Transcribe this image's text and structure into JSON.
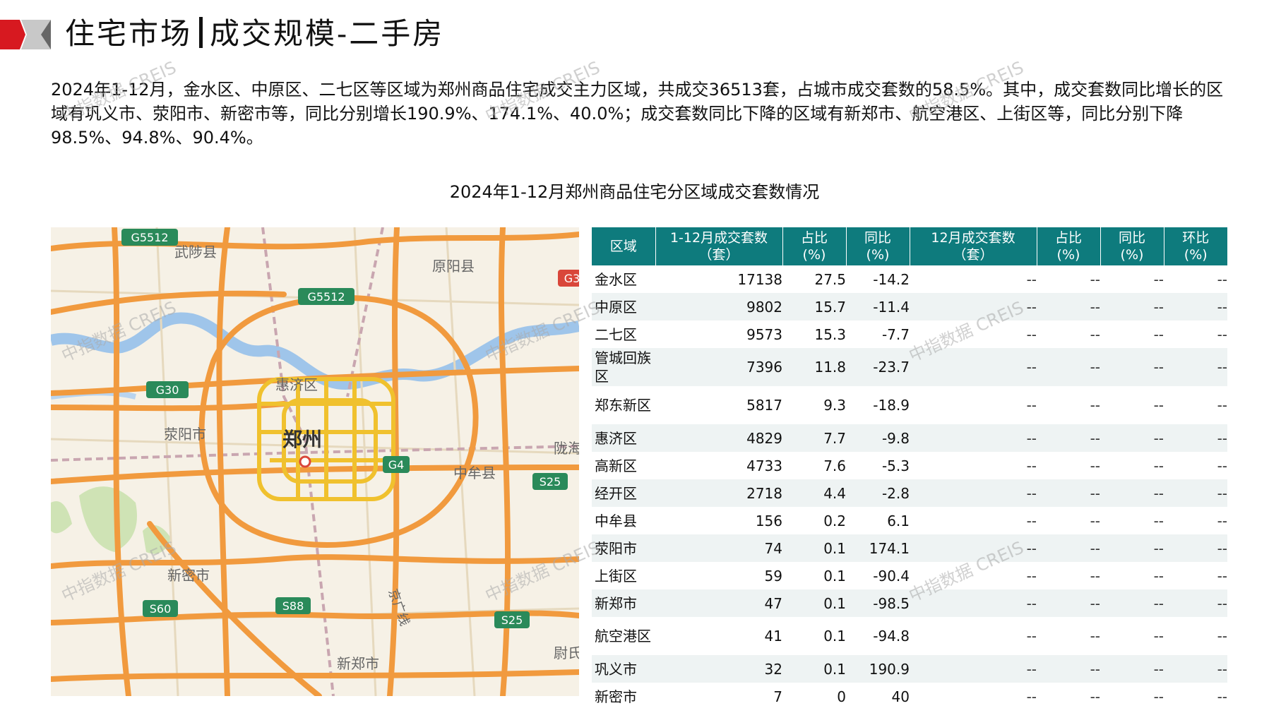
{
  "header": {
    "title_left": "住宅市场",
    "title_right": "成交规模-二手房"
  },
  "summary": "2024年1-12月，金水区、中原区、二七区等区域为郑州商品住宅成交主力区域，共成交36513套，占城市成交套数的58.5%。其中，成交套数同比增长的区域有巩义市、荥阳市、新密市等，同比分别增长190.9%、174.1%、40.0%；成交套数同比下降的区域有新郑市、航空港区、上街区等，同比分别下降98.5%、94.8%、90.4%。",
  "table_title": "2024年1-12月郑州商品住宅分区域成交套数情况",
  "watermark": "中指数据 CREIS",
  "map": {
    "labels": {
      "wuzhi": "武陟县",
      "yuanyang": "原阳县",
      "huiji": "惠济区",
      "zhengzhou": "郑州",
      "xingyang": "荥阳市",
      "zhongmou": "中牟县",
      "xinmi": "新密市",
      "xinzheng": "新郑市",
      "jingguang": "京广线",
      "weishi": "尉氏",
      "longhai": "陇海"
    },
    "shields": {
      "g5512a": "G5512",
      "g5512b": "G5512",
      "g30": "G30",
      "g4": "G4",
      "s25a": "S25",
      "s25b": "S25",
      "s60": "S60",
      "s88": "S88",
      "g3": "G3"
    }
  },
  "table": {
    "headers": [
      [
        "区域",
        ""
      ],
      [
        "1-12月成交套数",
        "（套）"
      ],
      [
        "占比",
        "(%)"
      ],
      [
        "同比",
        "(%)"
      ],
      [
        "12月成交套数",
        "（套）"
      ],
      [
        "占比",
        "(%)"
      ],
      [
        "同比",
        "(%)"
      ],
      [
        "环比",
        "(%)"
      ]
    ],
    "rows": [
      {
        "region": "金水区",
        "count": "17138",
        "share": "27.5",
        "yoy": "-14.2",
        "dec_count": "--",
        "dec_share": "--",
        "dec_yoy": "--",
        "dec_mom": "--"
      },
      {
        "region": "中原区",
        "count": "9802",
        "share": "15.7",
        "yoy": "-11.4",
        "dec_count": "--",
        "dec_share": "--",
        "dec_yoy": "--",
        "dec_mom": "--"
      },
      {
        "region": "二七区",
        "count": "9573",
        "share": "15.3",
        "yoy": "-7.7",
        "dec_count": "--",
        "dec_share": "--",
        "dec_yoy": "--",
        "dec_mom": "--"
      },
      {
        "region": "管城回族区",
        "count": "7396",
        "share": "11.8",
        "yoy": "-23.7",
        "dec_count": "--",
        "dec_share": "--",
        "dec_yoy": "--",
        "dec_mom": "--"
      },
      {
        "region": "郑东新区",
        "count": "5817",
        "share": "9.3",
        "yoy": "-18.9",
        "dec_count": "--",
        "dec_share": "--",
        "dec_yoy": "--",
        "dec_mom": "--"
      },
      {
        "region": "惠济区",
        "count": "4829",
        "share": "7.7",
        "yoy": "-9.8",
        "dec_count": "--",
        "dec_share": "--",
        "dec_yoy": "--",
        "dec_mom": "--"
      },
      {
        "region": "高新区",
        "count": "4733",
        "share": "7.6",
        "yoy": "-5.3",
        "dec_count": "--",
        "dec_share": "--",
        "dec_yoy": "--",
        "dec_mom": "--"
      },
      {
        "region": "经开区",
        "count": "2718",
        "share": "4.4",
        "yoy": "-2.8",
        "dec_count": "--",
        "dec_share": "--",
        "dec_yoy": "--",
        "dec_mom": "--"
      },
      {
        "region": "中牟县",
        "count": "156",
        "share": "0.2",
        "yoy": "6.1",
        "dec_count": "--",
        "dec_share": "--",
        "dec_yoy": "--",
        "dec_mom": "--"
      },
      {
        "region": "荥阳市",
        "count": "74",
        "share": "0.1",
        "yoy": "174.1",
        "dec_count": "--",
        "dec_share": "--",
        "dec_yoy": "--",
        "dec_mom": "--"
      },
      {
        "region": "上街区",
        "count": "59",
        "share": "0.1",
        "yoy": "-90.4",
        "dec_count": "--",
        "dec_share": "--",
        "dec_yoy": "--",
        "dec_mom": "--"
      },
      {
        "region": "新郑市",
        "count": "47",
        "share": "0.1",
        "yoy": "-98.5",
        "dec_count": "--",
        "dec_share": "--",
        "dec_yoy": "--",
        "dec_mom": "--"
      },
      {
        "region": "航空港区",
        "count": "41",
        "share": "0.1",
        "yoy": "-94.8",
        "dec_count": "--",
        "dec_share": "--",
        "dec_yoy": "--",
        "dec_mom": "--"
      },
      {
        "region": "巩义市",
        "count": "32",
        "share": "0.1",
        "yoy": "190.9",
        "dec_count": "--",
        "dec_share": "--",
        "dec_yoy": "--",
        "dec_mom": "--"
      },
      {
        "region": "新密市",
        "count": "7",
        "share": "0",
        "yoy": "40",
        "dec_count": "--",
        "dec_share": "--",
        "dec_yoy": "--",
        "dec_mom": "--"
      }
    ]
  }
}
